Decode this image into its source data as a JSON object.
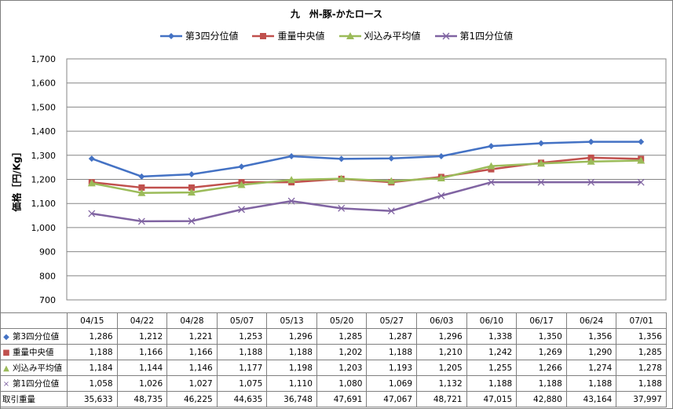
{
  "chart_data": {
    "type": "line",
    "title": "九　州-豚-かたロース",
    "ylabel": "価格［円/Kg］",
    "xlabel": "",
    "ylim": [
      700,
      1700
    ],
    "yticks": [
      "700",
      "800",
      "900",
      "1,000",
      "1,100",
      "1,200",
      "1,300",
      "1,400",
      "1,500",
      "1,600",
      "1,700"
    ],
    "categories": [
      "04/15",
      "04/22",
      "04/28",
      "05/07",
      "05/13",
      "05/20",
      "05/27",
      "06/03",
      "06/10",
      "06/17",
      "06/24",
      "07/01"
    ],
    "grid": true,
    "legend_position": "top",
    "series": [
      {
        "name": "第3四分位値",
        "color": "#4472c4",
        "marker": "diamond",
        "values": [
          1286,
          1212,
          1221,
          1253,
          1296,
          1285,
          1287,
          1296,
          1338,
          1350,
          1356,
          1356
        ],
        "labels": [
          "1,286",
          "1,212",
          "1,221",
          "1,253",
          "1,296",
          "1,285",
          "1,287",
          "1,296",
          "1,338",
          "1,350",
          "1,356",
          "1,356"
        ]
      },
      {
        "name": "重量中央値",
        "color": "#c0504d",
        "marker": "square",
        "values": [
          1188,
          1166,
          1166,
          1188,
          1188,
          1202,
          1188,
          1210,
          1242,
          1269,
          1290,
          1285
        ],
        "labels": [
          "1,188",
          "1,166",
          "1,166",
          "1,188",
          "1,188",
          "1,202",
          "1,188",
          "1,210",
          "1,242",
          "1,269",
          "1,290",
          "1,285"
        ]
      },
      {
        "name": "刈込み平均値",
        "color": "#9bbb59",
        "marker": "triangle",
        "values": [
          1184,
          1144,
          1146,
          1177,
          1198,
          1203,
          1193,
          1205,
          1255,
          1266,
          1274,
          1278
        ],
        "labels": [
          "1,184",
          "1,144",
          "1,146",
          "1,177",
          "1,198",
          "1,203",
          "1,193",
          "1,205",
          "1,255",
          "1,266",
          "1,274",
          "1,278"
        ]
      },
      {
        "name": "第1四分位値",
        "color": "#8064a2",
        "marker": "x",
        "values": [
          1058,
          1026,
          1027,
          1075,
          1110,
          1080,
          1069,
          1132,
          1188,
          1188,
          1188,
          1188
        ],
        "labels": [
          "1,058",
          "1,026",
          "1,027",
          "1,075",
          "1,110",
          "1,080",
          "1,069",
          "1,132",
          "1,188",
          "1,188",
          "1,188",
          "1,188"
        ]
      }
    ],
    "table_extra_row": {
      "name": "取引重量",
      "values": [
        "35,633",
        "48,735",
        "46,225",
        "44,635",
        "36,748",
        "47,691",
        "47,067",
        "48,721",
        "47,015",
        "42,880",
        "43,164",
        "37,997"
      ]
    }
  }
}
